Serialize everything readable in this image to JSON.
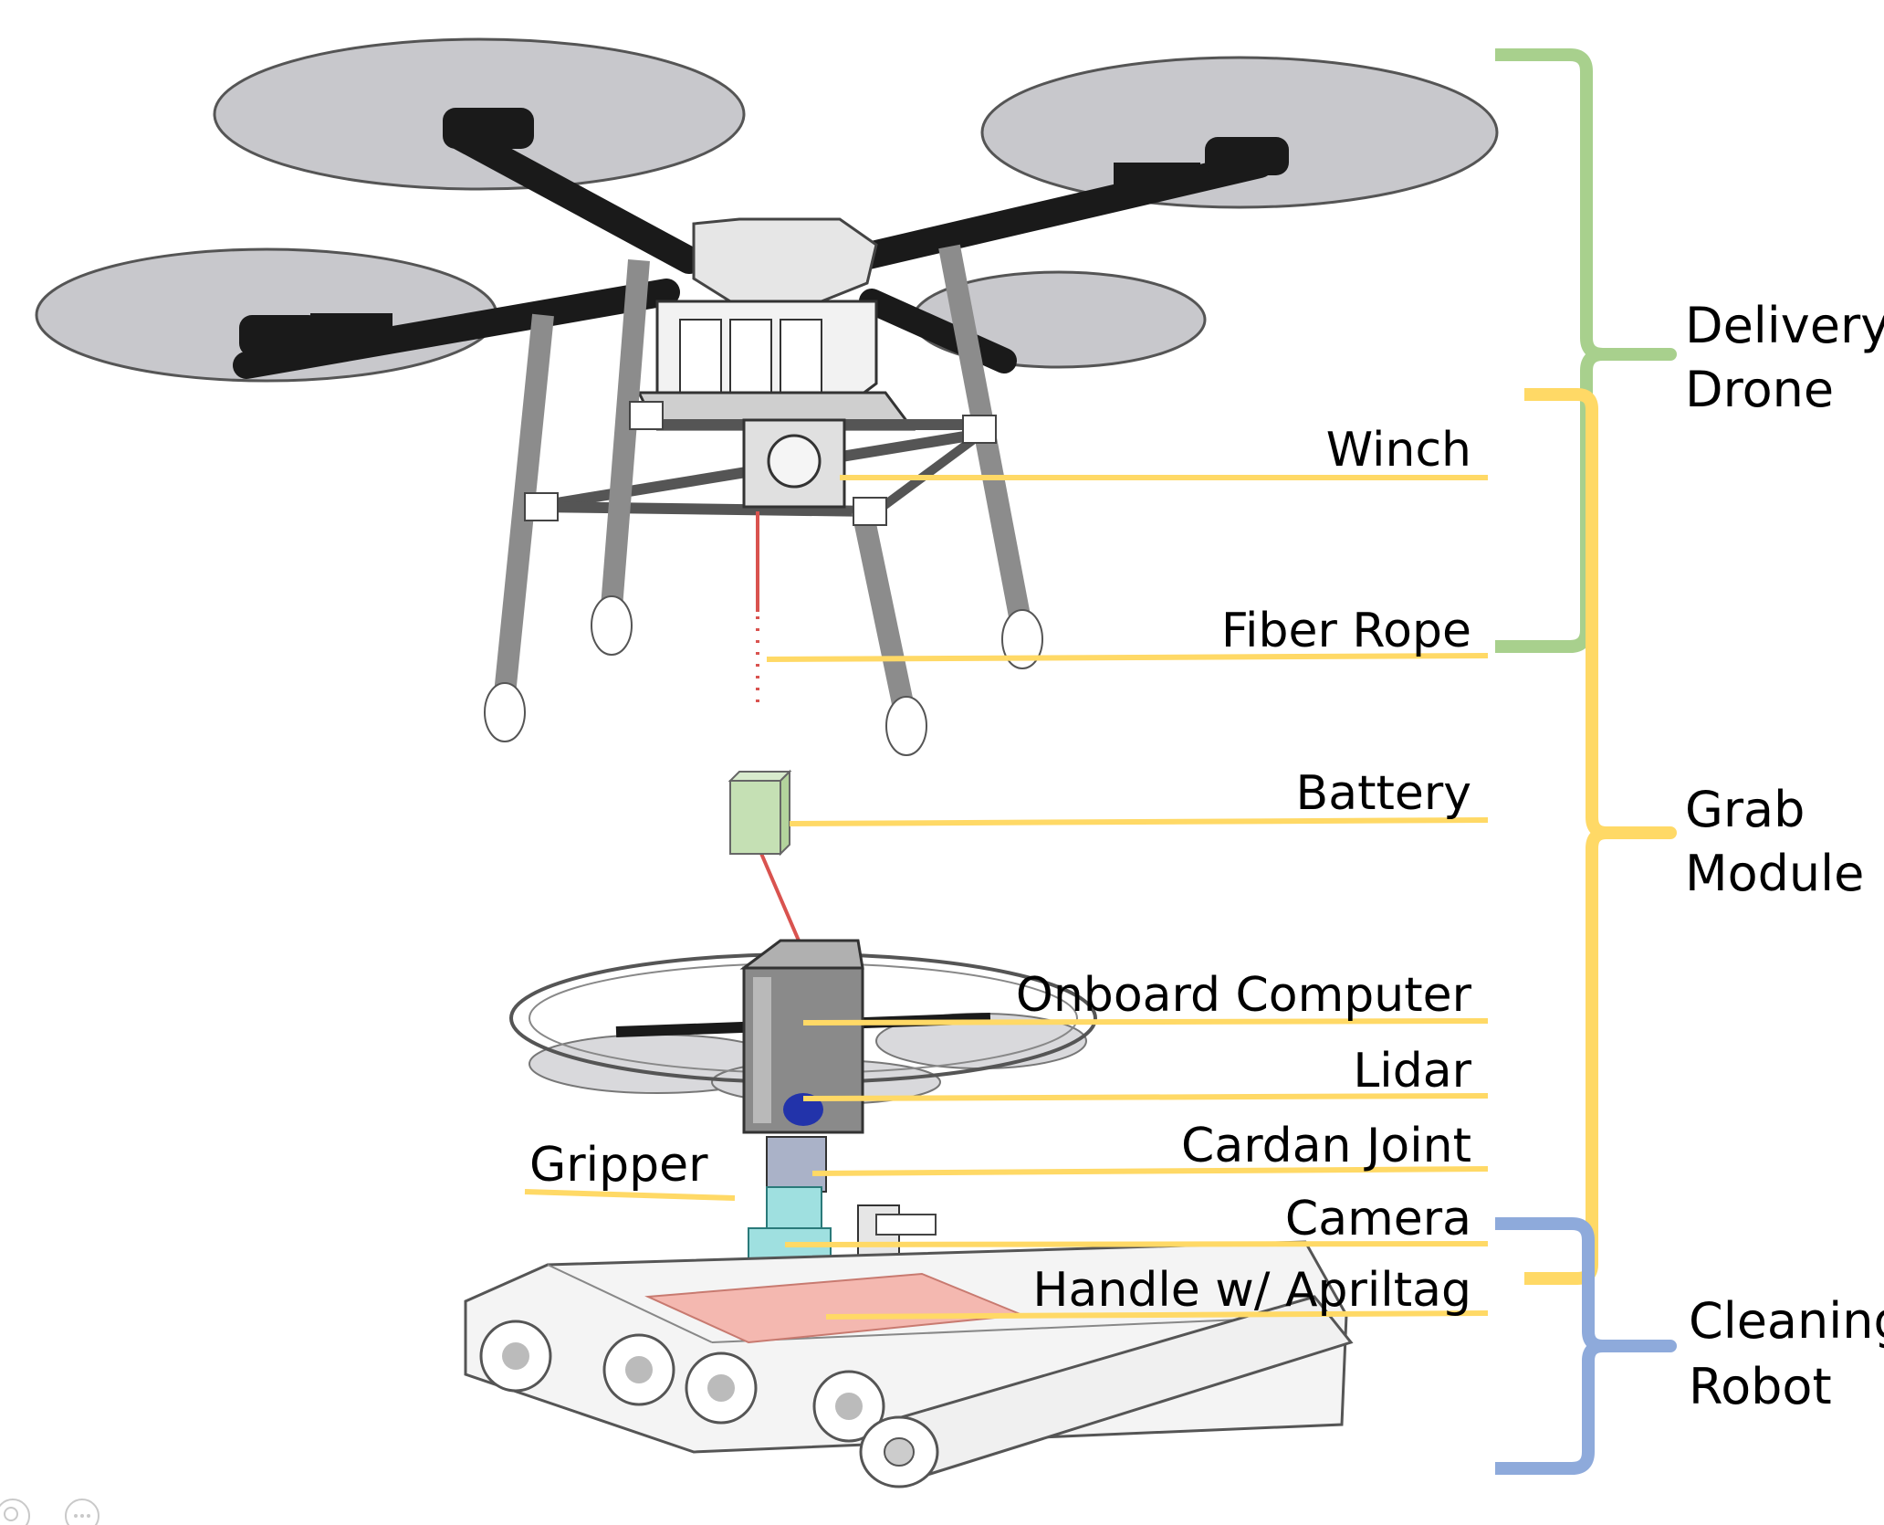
{
  "labels": {
    "winch": "Winch",
    "fiber_rope": "Fiber Rope",
    "battery": "Battery",
    "onboard_computer": "Onboard Computer",
    "lidar": "Lidar",
    "cardan_joint": "Cardan Joint",
    "gripper": "Gripper",
    "camera": "Camera",
    "handle": "Handle w/ Apriltag"
  },
  "groups": {
    "delivery_drone": {
      "line1": "Delivery",
      "line2": "Drone",
      "color": "#a8d08d"
    },
    "grab_module": {
      "line1": "Grab",
      "line2": "Module",
      "color": "#ffd966"
    },
    "cleaning_robot": {
      "line1": "Cleaning",
      "line2": "Robot",
      "color": "#8eaadb"
    }
  },
  "colors": {
    "leader_line": "#ffd966",
    "rope": "#d9534f",
    "battery_fill": "#c5e0b4",
    "handle_plate": "#f4b8b0",
    "gripper_part": "#9fe0e0",
    "prop_disc": "#c8c8cc",
    "arm": "#1a1a1a",
    "frame": "#d9d9d9"
  },
  "icons": [
    "search-icon",
    "more-icon"
  ]
}
